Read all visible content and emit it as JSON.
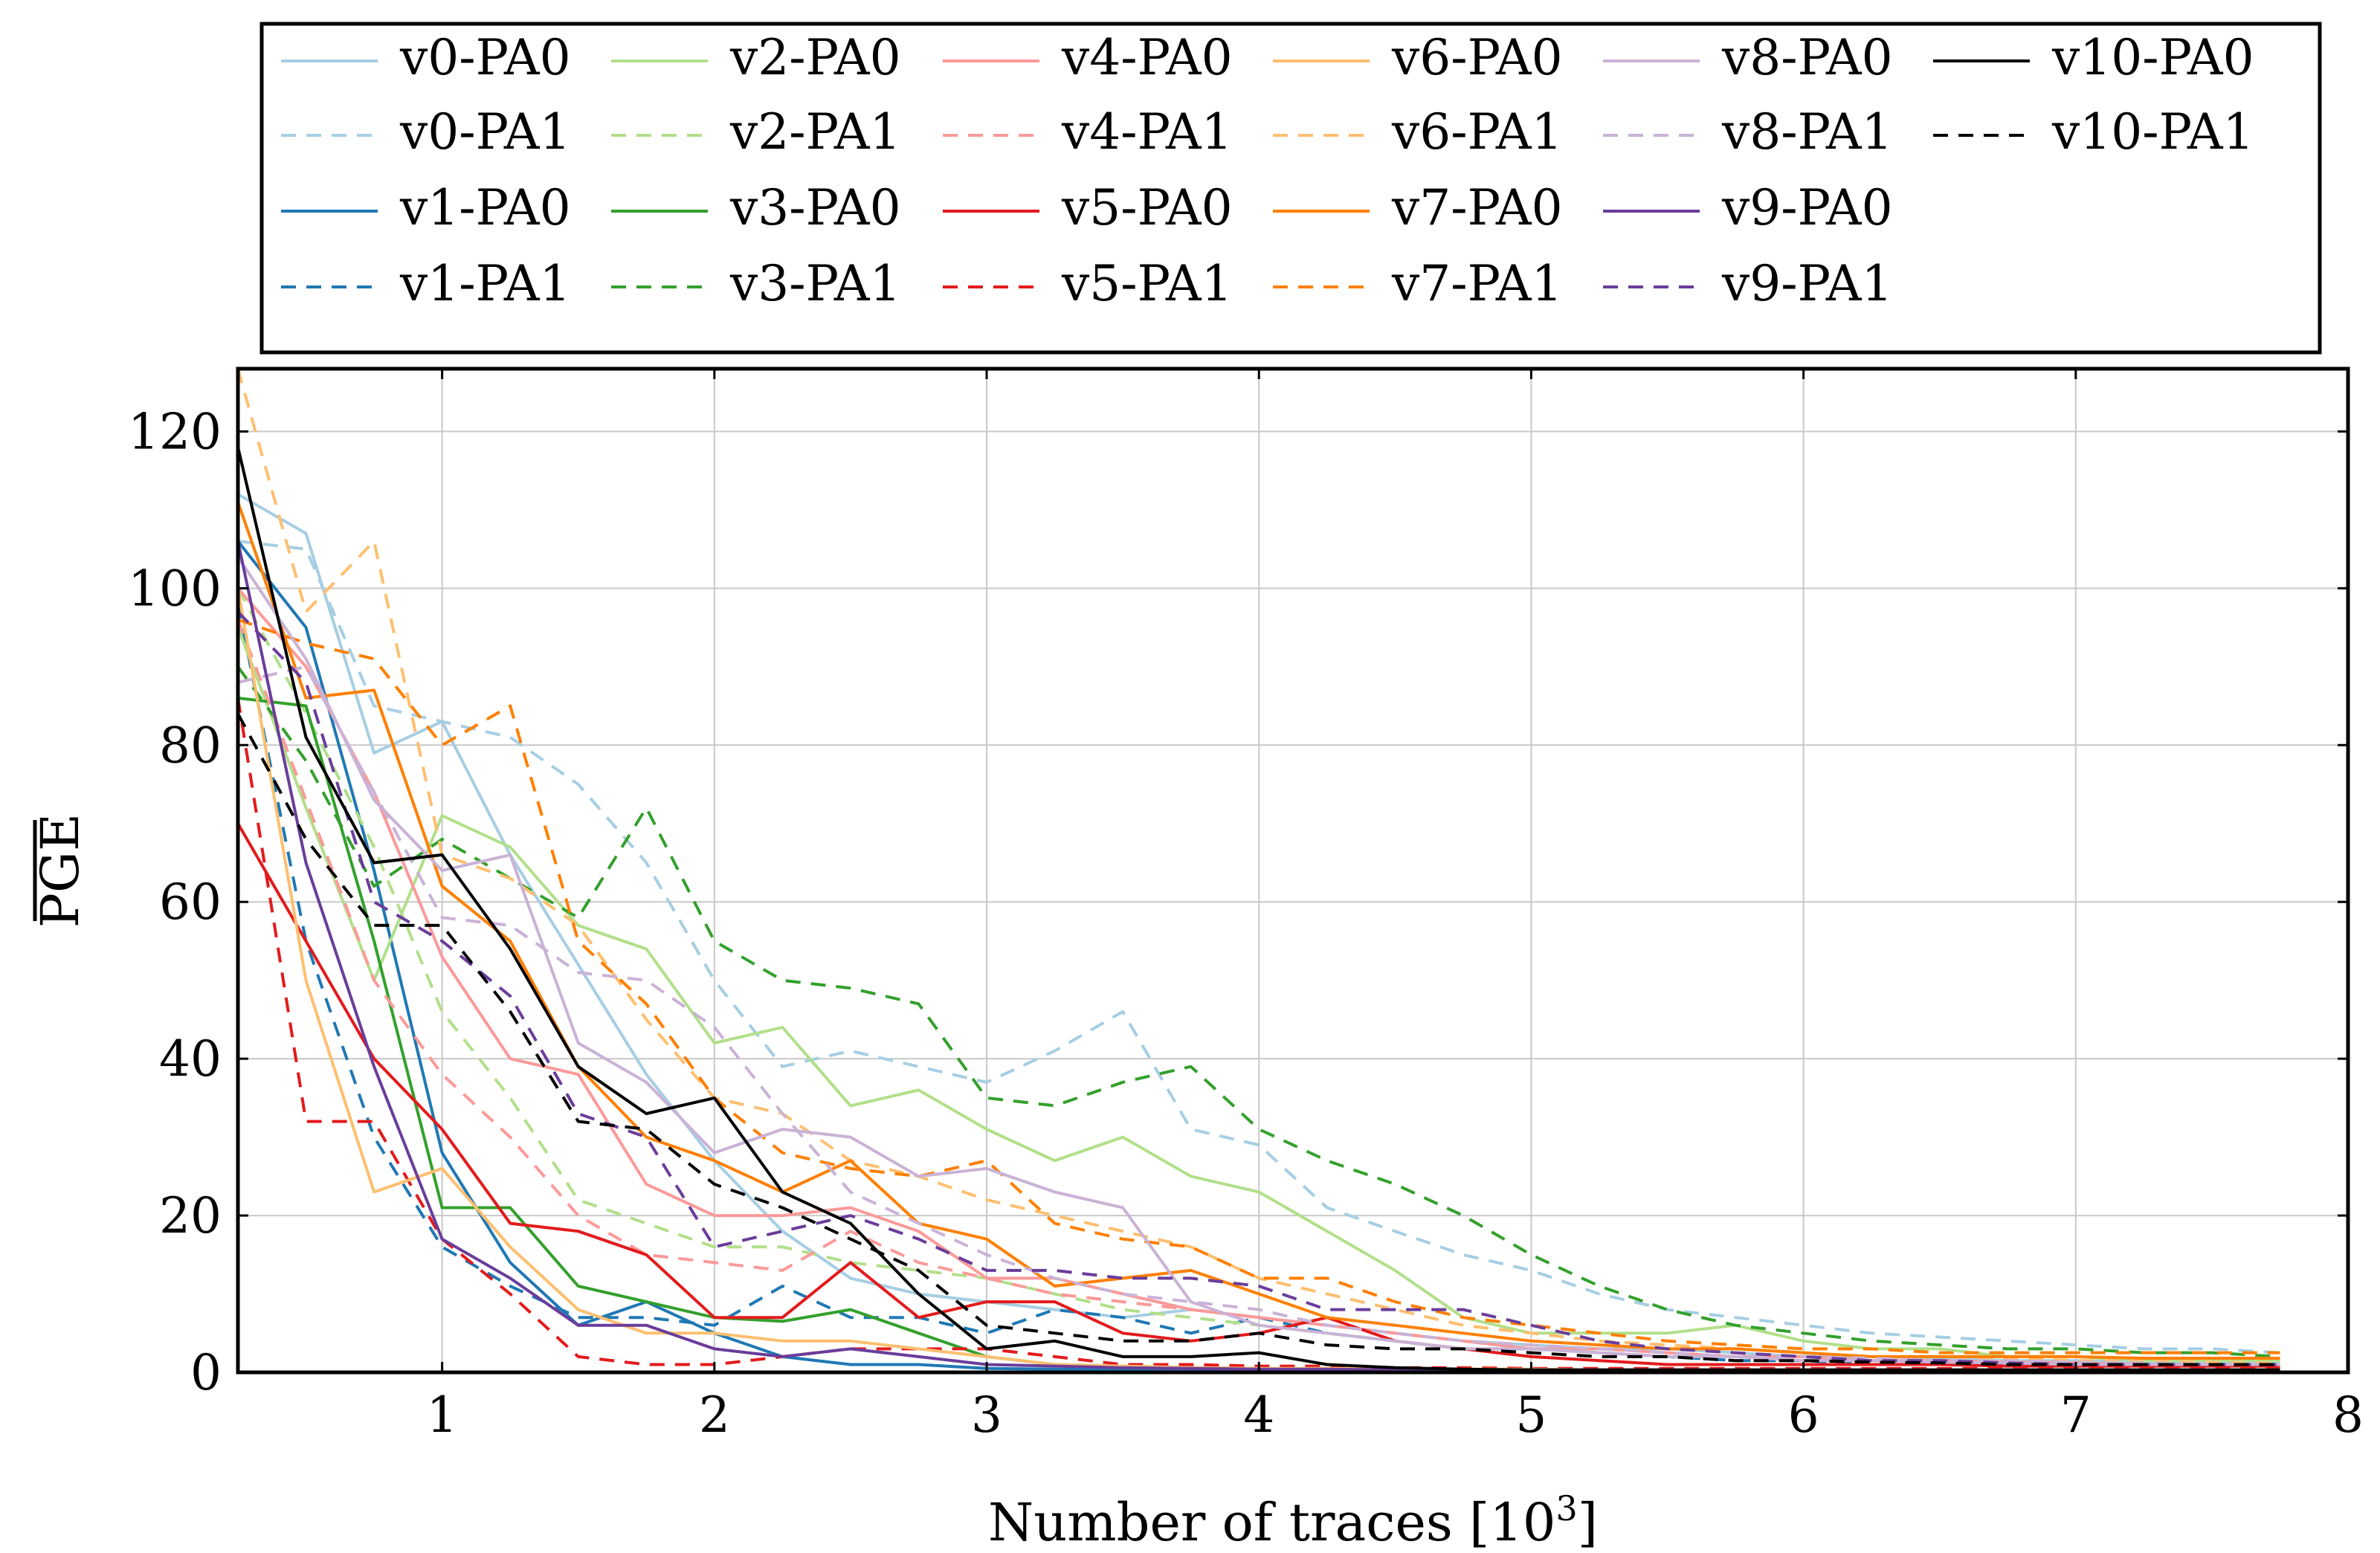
{
  "chart_data": {
    "type": "line",
    "title": "",
    "xlabel": "Number of traces [10",
    "xlabel_sup": "3",
    "xlabel_suffix": "]",
    "ylabel": "PGE",
    "ylabel_overline": true,
    "xlim": [
      0.25,
      8
    ],
    "ylim": [
      0,
      128
    ],
    "xticks": [
      1,
      2,
      3,
      4,
      5,
      6,
      7,
      8
    ],
    "yticks": [
      0,
      20,
      40,
      60,
      80,
      100,
      120
    ],
    "grid": true,
    "legend_position": "top",
    "x": [
      0.25,
      0.5,
      0.75,
      1,
      1.25,
      1.5,
      1.75,
      2,
      2.25,
      2.5,
      2.75,
      3,
      3.25,
      3.5,
      3.75,
      4,
      4.25,
      4.5,
      4.75,
      5,
      5.25,
      5.5,
      5.75,
      6,
      6.25,
      6.5,
      6.75,
      7,
      7.25,
      7.5,
      7.75
    ],
    "series": [
      {
        "name": "v0-PA0",
        "color": "#a6cee3",
        "dash": false,
        "values": [
          112,
          107,
          79,
          83,
          66,
          52,
          38,
          27,
          18,
          12,
          10,
          9,
          8,
          7,
          8,
          7,
          6,
          5,
          4,
          3.5,
          3,
          3,
          2.5,
          2,
          2,
          1.8,
          1.5,
          1.5,
          1.3,
          1.2,
          1.2
        ]
      },
      {
        "name": "v0-PA1",
        "color": "#a6cee3",
        "dash": true,
        "values": [
          106,
          105,
          85,
          83,
          81,
          75,
          65,
          50,
          39,
          41,
          39,
          37,
          41,
          46,
          31,
          29,
          21,
          18,
          15,
          13,
          10,
          8,
          7,
          6,
          5,
          4.5,
          4,
          3.5,
          3,
          3,
          2.5
        ]
      },
      {
        "name": "v1-PA0",
        "color": "#1f78b4",
        "dash": false,
        "values": [
          106,
          95,
          64,
          28,
          14,
          6,
          9,
          5,
          2,
          1,
          1,
          0.5,
          0.4,
          0.3,
          0.3,
          0.2,
          0.2,
          0.2,
          0.2,
          0.2,
          0.2,
          0.2,
          0.2,
          0.2,
          0.2,
          0.2,
          0.2,
          0.2,
          0.2,
          0.2,
          0.2
        ]
      },
      {
        "name": "v1-PA1",
        "color": "#1f78b4",
        "dash": true,
        "values": [
          98,
          55,
          30,
          16,
          11,
          7,
          7,
          6,
          11,
          7,
          7,
          5,
          8,
          7,
          5,
          7,
          5,
          4,
          3,
          3,
          2.5,
          2,
          1.5,
          1.5,
          1,
          1,
          1,
          1,
          0.8,
          0.8,
          0.8
        ]
      },
      {
        "name": "v2-PA0",
        "color": "#b2df8a",
        "dash": false,
        "values": [
          95,
          72,
          50,
          71,
          67,
          57,
          54,
          42,
          44,
          34,
          36,
          31,
          27,
          30,
          25,
          23,
          18,
          13,
          7,
          5,
          5,
          5,
          6,
          4,
          3,
          3,
          2,
          2,
          1.5,
          1.5,
          1.5
        ]
      },
      {
        "name": "v2-PA1",
        "color": "#b2df8a",
        "dash": true,
        "values": [
          100,
          84,
          67,
          46,
          35,
          22,
          19,
          16,
          16,
          14,
          13,
          12,
          10,
          8,
          7,
          6,
          5,
          4,
          3,
          3,
          2.5,
          2,
          2,
          1.5,
          1.5,
          1.3,
          1.2,
          1,
          1,
          1,
          1
        ]
      },
      {
        "name": "v3-PA0",
        "color": "#33a02c",
        "dash": false,
        "values": [
          86,
          85,
          55,
          21,
          21,
          11,
          9,
          7,
          6.5,
          8,
          5,
          2,
          1,
          0.8,
          0.6,
          0.5,
          0.4,
          0.4,
          0.3,
          0.3,
          0.3,
          0.3,
          0.3,
          0.3,
          0.3,
          0.3,
          0.3,
          0.3,
          0.3,
          0.3,
          0.3
        ]
      },
      {
        "name": "v3-PA1",
        "color": "#33a02c",
        "dash": true,
        "values": [
          90,
          78,
          62,
          68,
          63,
          58,
          72,
          55,
          50,
          49,
          47,
          35,
          34,
          37,
          39,
          31,
          27,
          24,
          20,
          15,
          11,
          8,
          6,
          5,
          4,
          3.5,
          3,
          3,
          2.5,
          2.5,
          2
        ]
      },
      {
        "name": "v4-PA0",
        "color": "#fb9a99",
        "dash": false,
        "values": [
          100,
          90,
          74,
          53,
          40,
          38,
          24,
          20,
          20,
          21,
          18,
          12,
          12,
          10,
          8,
          7,
          6,
          5,
          4,
          3,
          3,
          2.5,
          2,
          2,
          1.5,
          1.5,
          1.3,
          1.2,
          1,
          1,
          1
        ]
      },
      {
        "name": "v4-PA1",
        "color": "#fb9a99",
        "dash": true,
        "values": [
          96,
          73,
          50,
          38,
          30,
          20,
          15,
          14,
          13,
          18,
          14,
          12,
          10,
          9,
          8,
          7,
          6,
          5,
          4,
          3,
          3,
          2.5,
          2,
          2,
          1.5,
          1.5,
          1.3,
          1.2,
          1,
          1,
          1
        ]
      },
      {
        "name": "v5-PA0",
        "color": "#e31a1c",
        "dash": false,
        "values": [
          70,
          55,
          40,
          31,
          19,
          18,
          15,
          7,
          7,
          14,
          7,
          9,
          9,
          5,
          4,
          5,
          7,
          4,
          3,
          2,
          1.5,
          1,
          1,
          1,
          1,
          1,
          0.8,
          0.8,
          0.8,
          0.8,
          0.8
        ]
      },
      {
        "name": "v5-PA1",
        "color": "#e31a1c",
        "dash": true,
        "values": [
          86,
          32,
          32,
          17,
          10,
          2,
          1,
          1,
          2,
          3,
          3,
          3,
          2,
          1,
          1,
          0.8,
          0.8,
          0.6,
          0.6,
          0.5,
          0.5,
          0.5,
          0.5,
          0.5,
          0.5,
          0.5,
          0.5,
          0.5,
          0.5,
          0.5,
          0.5
        ]
      },
      {
        "name": "v6-PA0",
        "color": "#fdbf6f",
        "dash": false,
        "values": [
          100,
          50,
          23,
          26,
          16,
          8,
          5,
          5,
          4,
          4,
          3,
          2,
          1,
          0.8,
          0.6,
          0.5,
          0.5,
          0.4,
          0.4,
          0.4,
          0.3,
          0.3,
          0.3,
          0.3,
          0.3,
          0.3,
          0.3,
          0.3,
          0.3,
          0.3,
          0.3
        ]
      },
      {
        "name": "v6-PA1",
        "color": "#fdbf6f",
        "dash": true,
        "values": [
          128,
          97,
          106,
          66,
          63,
          57,
          45,
          35,
          33,
          27,
          25,
          22,
          20,
          18,
          16,
          12,
          10,
          8,
          6,
          5,
          4,
          3.5,
          3,
          2.5,
          2,
          2,
          1.8,
          1.5,
          1.5,
          1.3,
          1.2
        ]
      },
      {
        "name": "v7-PA0",
        "color": "#ff7f00",
        "dash": false,
        "values": [
          111,
          86,
          87,
          62,
          55,
          39,
          30,
          27,
          23,
          27,
          19,
          17,
          11,
          12,
          13,
          10,
          7,
          6,
          5,
          4,
          3.5,
          3,
          3,
          2.5,
          2,
          2,
          2,
          2,
          1.8,
          1.8,
          1.8
        ]
      },
      {
        "name": "v7-PA1",
        "color": "#ff7f00",
        "dash": true,
        "values": [
          96,
          93,
          91,
          80,
          85,
          55,
          47,
          35,
          28,
          26,
          25,
          27,
          19,
          17,
          16,
          12,
          12,
          9,
          7,
          6,
          5,
          4,
          3.5,
          3,
          3,
          2.5,
          2.5,
          2.5,
          2.5,
          2.5,
          2.5
        ]
      },
      {
        "name": "v8-PA0",
        "color": "#cab2d6",
        "dash": false,
        "values": [
          104,
          91,
          73,
          64,
          66,
          42,
          37,
          28,
          31,
          30,
          25,
          26,
          23,
          21,
          9,
          6,
          5,
          4,
          3,
          3,
          2.5,
          2,
          2,
          1.5,
          1.5,
          1.3,
          1.2,
          1,
          1,
          1,
          1
        ]
      },
      {
        "name": "v8-PA1",
        "color": "#cab2d6",
        "dash": true,
        "values": [
          88,
          90,
          74,
          58,
          57,
          51,
          50,
          44,
          33,
          23,
          19,
          15,
          12,
          10,
          9,
          8,
          6,
          5,
          4,
          3.5,
          3,
          2.5,
          2,
          2,
          1.8,
          1.5,
          1.5,
          1.3,
          1.2,
          1,
          1
        ]
      },
      {
        "name": "v9-PA0",
        "color": "#6a3d9a",
        "dash": false,
        "values": [
          106,
          65,
          39,
          17,
          12,
          6,
          6,
          3,
          2,
          3,
          2,
          1,
          0.8,
          0.6,
          0.5,
          0.4,
          0.4,
          0.3,
          0.3,
          0.3,
          0.3,
          0.3,
          0.3,
          0.3,
          0.3,
          0.3,
          0.3,
          0.3,
          0.3,
          0.3,
          0.3
        ]
      },
      {
        "name": "v9-PA1",
        "color": "#6a3d9a",
        "dash": true,
        "values": [
          97,
          88,
          60,
          55,
          48,
          33,
          30,
          16,
          18,
          20,
          17,
          13,
          13,
          12,
          12,
          11,
          8,
          8,
          8,
          6,
          4,
          3,
          2.5,
          2,
          1.5,
          1.5,
          1.2,
          1,
          1,
          1,
          1
        ]
      },
      {
        "name": "v10-PA0",
        "color": "#000000",
        "dash": false,
        "values": [
          118,
          81,
          65,
          66,
          54,
          39,
          33,
          35,
          23,
          19,
          10,
          3,
          4,
          2,
          2,
          2.5,
          1,
          0.6,
          0.4,
          0.3,
          0.3,
          0.3,
          0.3,
          0.3,
          0.3,
          0.3,
          0.3,
          0.3,
          0.3,
          0.3,
          0.3
        ]
      },
      {
        "name": "v10-PA1",
        "color": "#000000",
        "dash": true,
        "values": [
          84,
          68,
          57,
          57,
          46,
          32,
          31,
          24,
          21,
          17,
          13,
          6,
          5,
          4,
          4,
          5,
          3.5,
          3,
          3,
          2.5,
          2,
          2,
          1.5,
          1.5,
          1.3,
          1.2,
          1,
          1,
          1,
          1,
          1
        ]
      }
    ]
  }
}
